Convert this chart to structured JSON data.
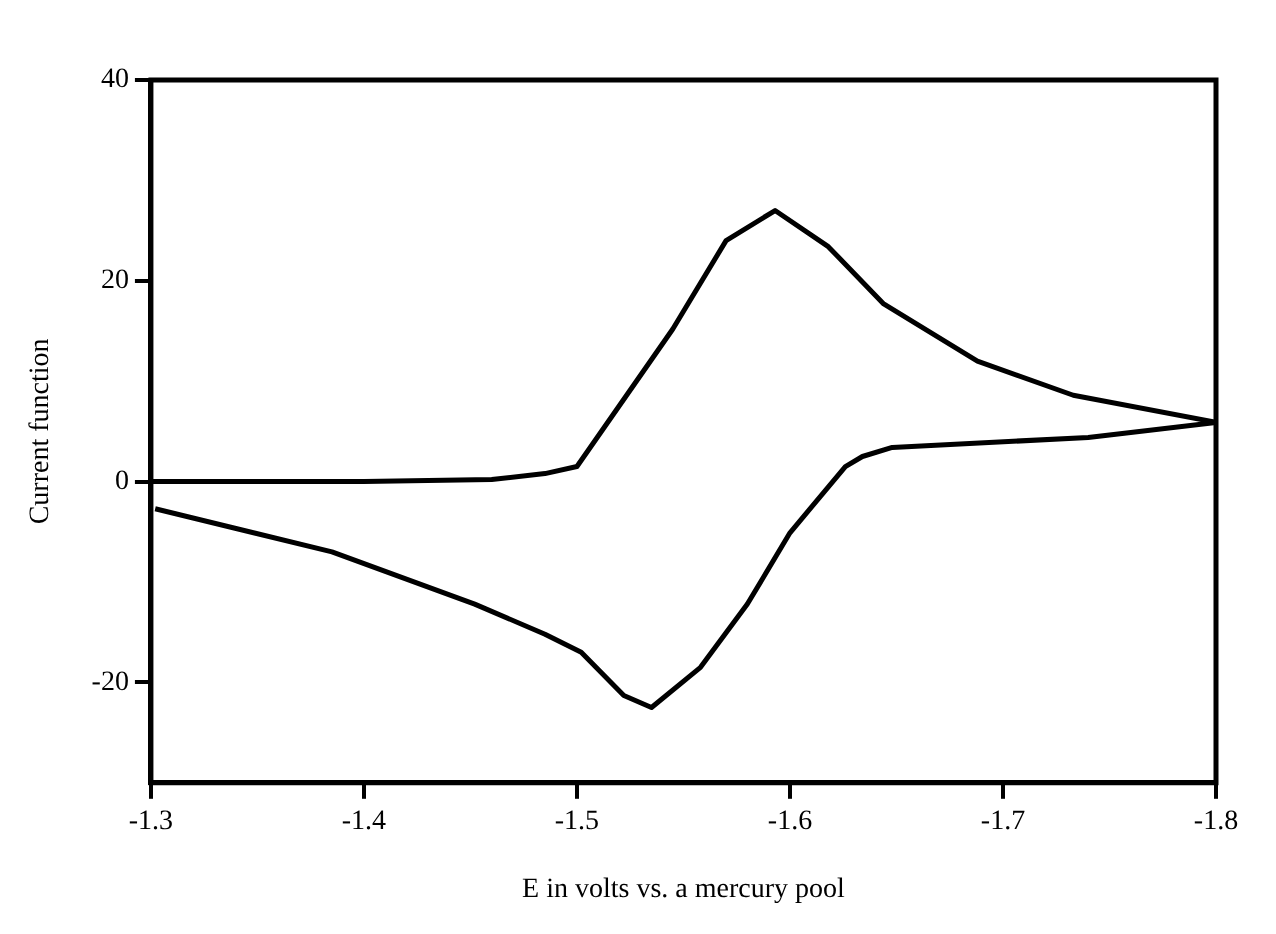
{
  "chart_data": {
    "type": "line",
    "xlabel": "E in volts vs. a mercury pool",
    "ylabel": "Current function",
    "xlim": [
      -1.3,
      -1.8
    ],
    "xticks": [
      -1.3,
      -1.4,
      -1.5,
      -1.6,
      -1.7,
      -1.8
    ],
    "ylim": [
      -30,
      40
    ],
    "yticks": [
      -20,
      0,
      20,
      40
    ],
    "grid": false,
    "marker": "none",
    "line_style": "solid",
    "series": [
      {
        "color": "#000000",
        "x": [
          -1.3,
          -1.4,
          -1.46,
          -1.485,
          -1.5,
          -1.545,
          -1.57,
          -1.593,
          -1.618,
          -1.644,
          -1.688,
          -1.733,
          -1.8
        ],
        "values": [
          0,
          0,
          0.2,
          0.8,
          1.5,
          15.2,
          24,
          27,
          23.4,
          17.7,
          12,
          8.6,
          5.9
        ]
      },
      {
        "color": "#000000",
        "x": [
          -1.8,
          -1.74,
          -1.648,
          -1.634,
          -1.626,
          -1.6,
          -1.58,
          -1.558,
          -1.535,
          -1.522,
          -1.502,
          -1.485,
          -1.452,
          -1.385,
          -1.302
        ],
        "values": [
          5.9,
          4.4,
          3.4,
          2.5,
          1.5,
          -5.1,
          -12.2,
          -18.5,
          -22.5,
          -21.3,
          -17,
          -15.2,
          -12.2,
          -7,
          -2.7
        ]
      }
    ]
  }
}
